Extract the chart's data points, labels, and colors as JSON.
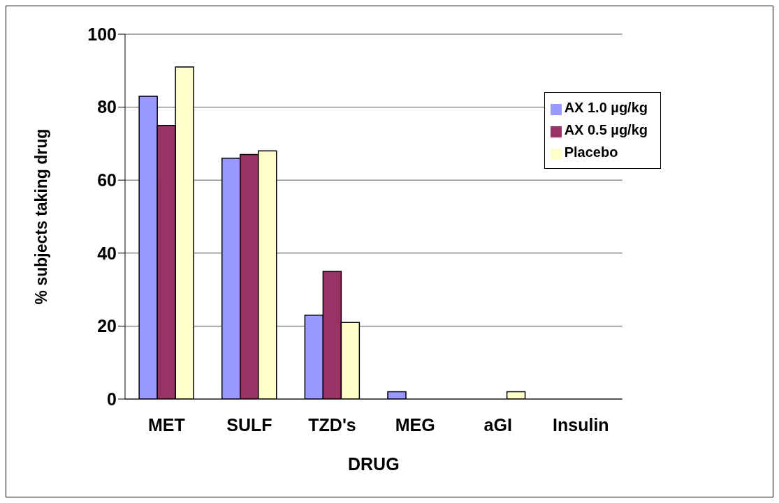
{
  "chart_data": {
    "type": "bar",
    "xlabel": "DRUG",
    "ylabel": "% subjects taking drug",
    "categories": [
      "MET",
      "SULF",
      "TZD's",
      "MEG",
      "aGI",
      "Insulin"
    ],
    "series": [
      {
        "name": "AX 1.0 µg/kg",
        "color": "#9999ff",
        "values": [
          83,
          66,
          23,
          2,
          0,
          0
        ]
      },
      {
        "name": "AX 0.5 µg/kg",
        "color": "#993366",
        "values": [
          75,
          67,
          35,
          0,
          0,
          0
        ]
      },
      {
        "name": "Placebo",
        "color": "#ffffcc",
        "values": [
          91,
          68,
          21,
          0,
          2,
          0
        ]
      }
    ],
    "ylim": [
      0,
      100
    ],
    "yticks": [
      0,
      20,
      40,
      60,
      80,
      100
    ],
    "grid": "y",
    "legend": "top right"
  }
}
